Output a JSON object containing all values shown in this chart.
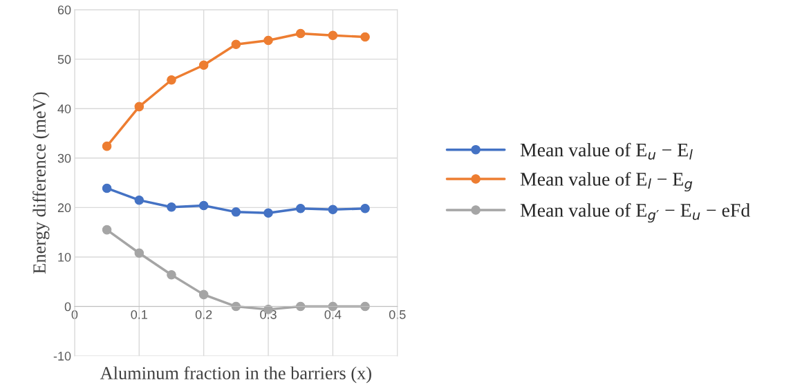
{
  "chart_data": {
    "type": "line",
    "xlabel": "Aluminum fraction in the barriers (x)",
    "ylabel": "Energy difference (meV)",
    "x": [
      0.05,
      0.1,
      0.15,
      0.2,
      0.25,
      0.3,
      0.35,
      0.4,
      0.45
    ],
    "series": [
      {
        "name": "Mean value of E$_{u}$ − E$_{l}$",
        "color": "#4472c4",
        "values": [
          23.9,
          21.5,
          20.1,
          20.4,
          19.1,
          18.9,
          19.8,
          19.6,
          19.8
        ]
      },
      {
        "name": "Mean value of E$_{l}$ − E$_{g}$",
        "color": "#ed7d31",
        "values": [
          32.4,
          40.4,
          45.8,
          48.8,
          53.0,
          53.8,
          55.2,
          54.8,
          54.5
        ]
      },
      {
        "name": "Mean value of E$_{g′}$ − E$_{u}$ − eFd",
        "color": "#a5a5a5",
        "values": [
          15.5,
          10.8,
          6.4,
          2.4,
          0,
          -0.6,
          0,
          0,
          0
        ]
      }
    ],
    "xlim": [
      0,
      0.5
    ],
    "xticks": [
      0,
      0.1,
      0.2,
      0.3,
      0.4,
      0.5
    ],
    "ylim": [
      -10,
      60
    ],
    "yticks": [
      -10,
      0,
      10,
      20,
      30,
      40,
      50,
      60
    ],
    "grid": true,
    "legend": "right",
    "marker": "circle",
    "line_style": "solid"
  }
}
